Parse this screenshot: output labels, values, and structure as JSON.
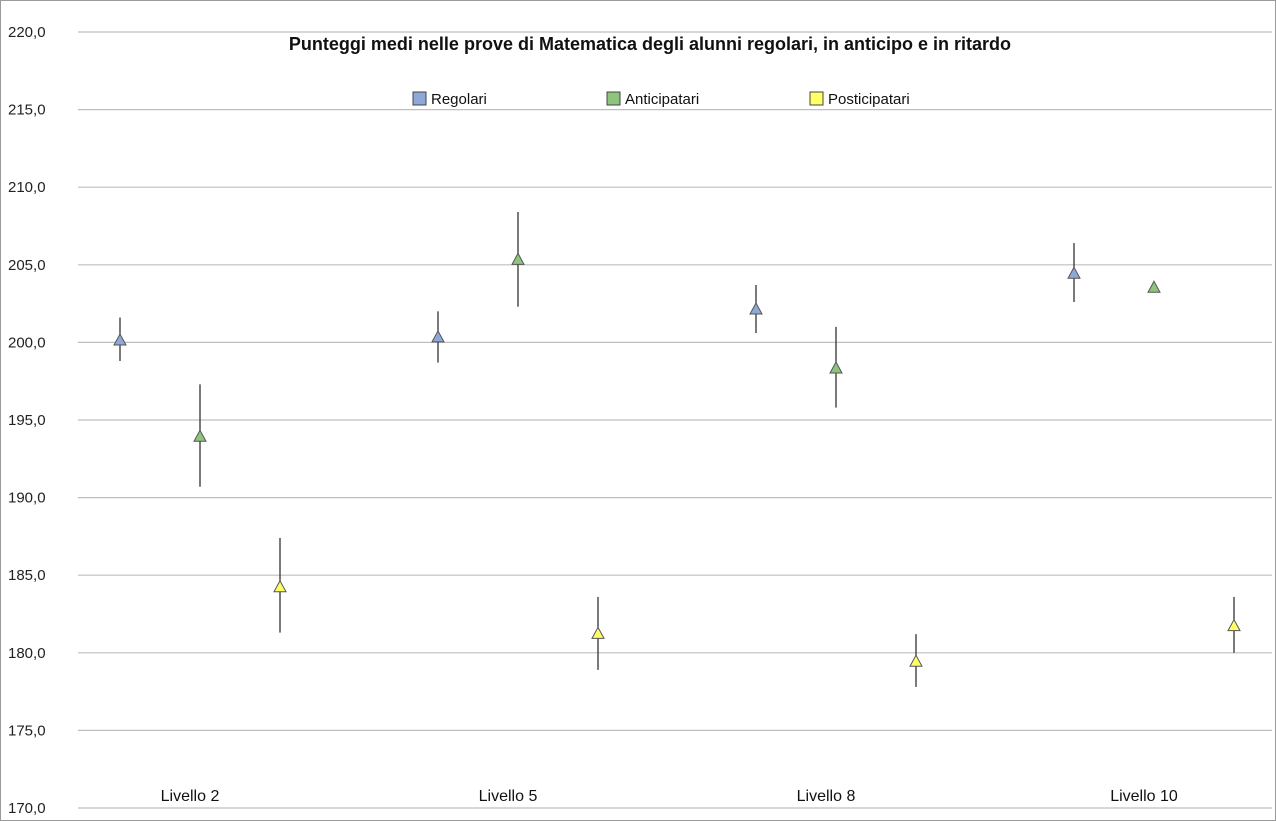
{
  "chart_data": {
    "type": "scatter",
    "title": "Punteggi medi nelle prove di Matematica degli alunni regolari, in anticipo e in ritardo",
    "xlabel": "",
    "ylabel": "",
    "categories": [
      "Livello 2",
      "Livello 5",
      "Livello 8",
      "Livello 10"
    ],
    "ylim": [
      170,
      220
    ],
    "yticks": [
      "170,0",
      "175,0",
      "180,0",
      "185,0",
      "190,0",
      "195,0",
      "200,0",
      "205,0",
      "210,0",
      "215,0",
      "220,0"
    ],
    "ytick_values": [
      170,
      175,
      180,
      185,
      190,
      195,
      200,
      205,
      210,
      215,
      220
    ],
    "grid": true,
    "legend_position": "top-center",
    "series": [
      {
        "name": "Regolari",
        "color": "#8EA9D8",
        "values": [
          200.1,
          200.3,
          202.1,
          204.4
        ],
        "error_low": [
          198.8,
          198.7,
          200.6,
          202.6
        ],
        "error_high": [
          201.6,
          202.0,
          203.7,
          206.4
        ]
      },
      {
        "name": "Anticipatari",
        "color": "#8DC47E",
        "values": [
          193.9,
          205.3,
          198.3,
          203.5
        ],
        "error_low": [
          190.7,
          202.3,
          195.8,
          null
        ],
        "error_high": [
          197.3,
          208.4,
          201.0,
          null
        ]
      },
      {
        "name": "Posticipatari",
        "color": "#FFFF66",
        "values": [
          184.2,
          181.2,
          179.4,
          181.7
        ],
        "error_low": [
          181.3,
          178.9,
          177.8,
          180.0
        ],
        "error_high": [
          187.4,
          183.6,
          181.2,
          183.6
        ]
      }
    ]
  }
}
